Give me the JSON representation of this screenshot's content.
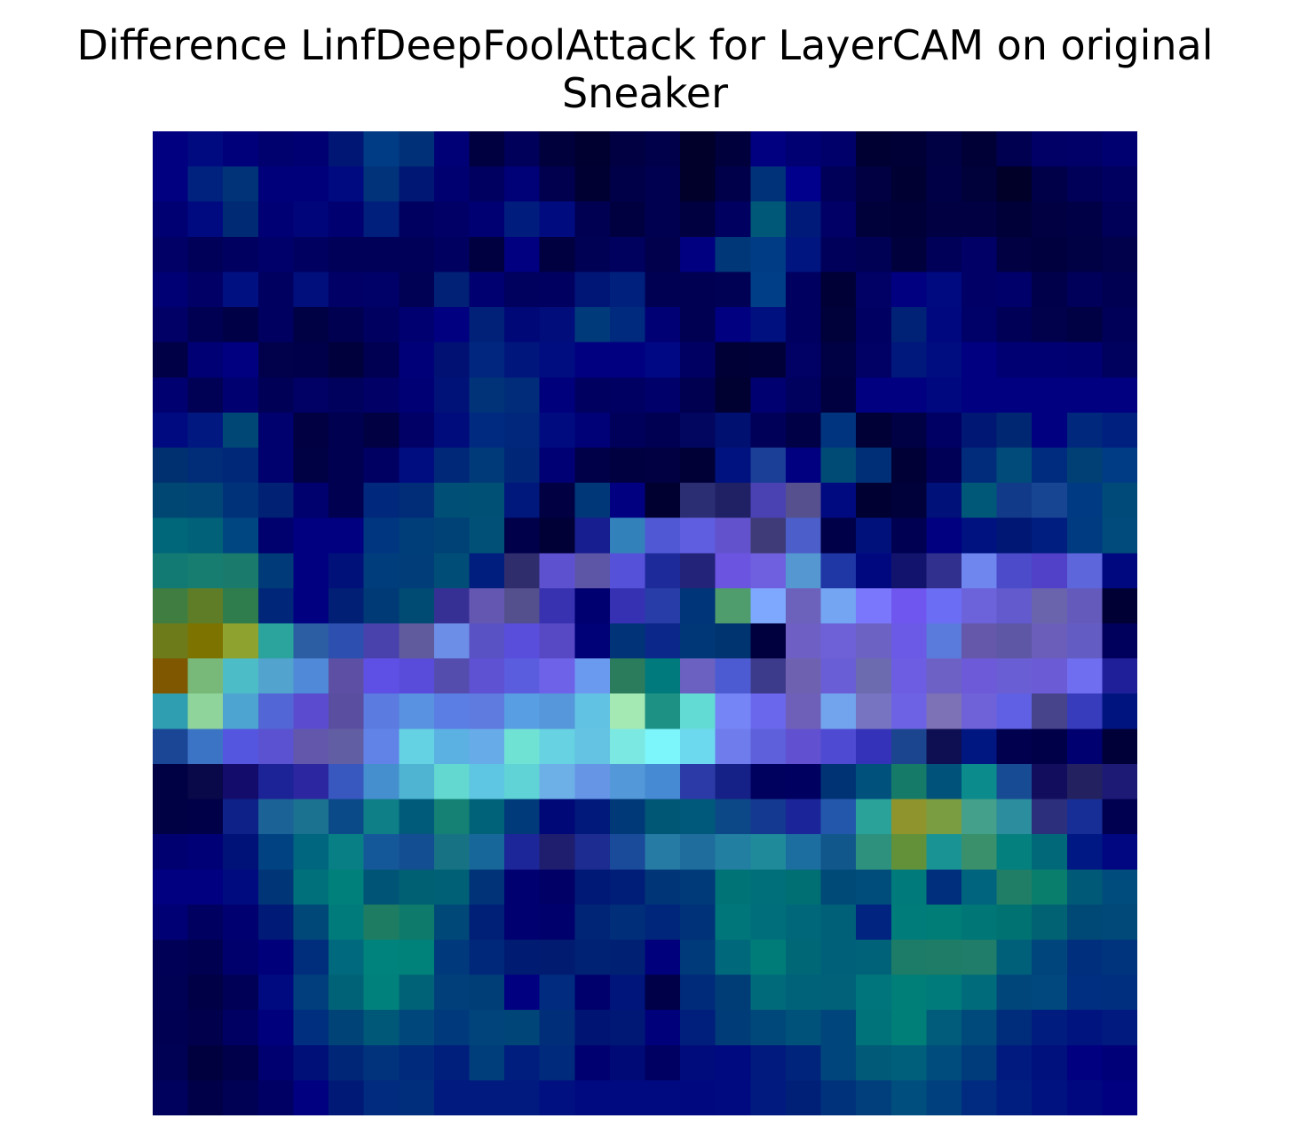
{
  "chart_data": {
    "type": "heatmap",
    "title_lines": [
      "Difference LinfDeepFoolAttack for LayerCAM on original",
      "Sneaker"
    ],
    "xlabel": "",
    "ylabel": "",
    "axes_visible": false,
    "grid": false,
    "rows": 28,
    "cols": 28,
    "cells": [
      [
        "#000080",
        "#000a80",
        "#00007a",
        "#00006e",
        "#000073",
        "#001675",
        "#003c85",
        "#003078",
        "#000076",
        "#000040",
        "#00005a",
        "#00003c",
        "#000030",
        "#000043",
        "#00004a",
        "#00002b",
        "#00003c",
        "#000080",
        "#000073",
        "#00006a",
        "#000033",
        "#000037",
        "#000044",
        "#000037",
        "#000050",
        "#000067",
        "#000068",
        "#000070"
      ],
      [
        "#000080",
        "#00227f",
        "#003378",
        "#00007a",
        "#00007a",
        "#000a80",
        "#003379",
        "#001773",
        "#000070",
        "#000060",
        "#000077",
        "#00004e",
        "#000033",
        "#000049",
        "#000050",
        "#00002b",
        "#00004a",
        "#00327a",
        "#00008d",
        "#000059",
        "#000042",
        "#000033",
        "#000047",
        "#00003a",
        "#000028",
        "#000048",
        "#000058",
        "#000060"
      ],
      [
        "#000073",
        "#000a80",
        "#002a73",
        "#000074",
        "#000579",
        "#000070",
        "#001e7c",
        "#000061",
        "#000067",
        "#000073",
        "#001c7c",
        "#000b80",
        "#000053",
        "#000041",
        "#000051",
        "#000040",
        "#000060",
        "#005878",
        "#001a79",
        "#000066",
        "#00003a",
        "#000038",
        "#000043",
        "#000043",
        "#000038",
        "#000042",
        "#000047",
        "#000058"
      ],
      [
        "#000066",
        "#000059",
        "#000061",
        "#00006a",
        "#000060",
        "#000059",
        "#000058",
        "#000058",
        "#000060",
        "#000040",
        "#000080",
        "#000041",
        "#000054",
        "#00005e",
        "#00004c",
        "#000080",
        "#003778",
        "#003c85",
        "#001580",
        "#00005b",
        "#000055",
        "#00003d",
        "#000059",
        "#000066",
        "#000043",
        "#00003e",
        "#000045",
        "#00004b"
      ],
      [
        "#000074",
        "#000066",
        "#001080",
        "#000061",
        "#000f7c",
        "#000067",
        "#000069",
        "#000055",
        "#002176",
        "#000070",
        "#00005e",
        "#000061",
        "#001677",
        "#00207d",
        "#000052",
        "#000052",
        "#000055",
        "#003e87",
        "#000061",
        "#000036",
        "#000065",
        "#000080",
        "#000a80",
        "#000066",
        "#00006a",
        "#00004a",
        "#00005b",
        "#000052"
      ],
      [
        "#000067",
        "#000052",
        "#000047",
        "#000061",
        "#000044",
        "#000051",
        "#000060",
        "#000070",
        "#000080",
        "#002177",
        "#000877",
        "#000d7a",
        "#003a7b",
        "#002a7d",
        "#000074",
        "#000053",
        "#000080",
        "#00107e",
        "#000060",
        "#00003a",
        "#000063",
        "#002276",
        "#000880",
        "#000069",
        "#000057",
        "#00004b",
        "#000044",
        "#000059"
      ],
      [
        "#000047",
        "#000075",
        "#000080",
        "#00004b",
        "#00004a",
        "#00003c",
        "#000052",
        "#000079",
        "#001173",
        "#00267f",
        "#00167c",
        "#000d80",
        "#000080",
        "#000080",
        "#000883",
        "#000063",
        "#000037",
        "#000039",
        "#000065",
        "#000044",
        "#000065",
        "#00177b",
        "#000d80",
        "#000080",
        "#000073",
        "#000073",
        "#000070",
        "#00005e"
      ],
      [
        "#000070",
        "#000055",
        "#000070",
        "#000057",
        "#000065",
        "#00005d",
        "#000067",
        "#000075",
        "#001278",
        "#003378",
        "#002c7a",
        "#00007c",
        "#000061",
        "#000063",
        "#00006a",
        "#000050",
        "#000031",
        "#000070",
        "#00005f",
        "#000040",
        "#000080",
        "#000080",
        "#000880",
        "#000080",
        "#000080",
        "#000080",
        "#000080",
        "#000080"
      ],
      [
        "#000a80",
        "#001880",
        "#004775",
        "#00006e",
        "#000042",
        "#000050",
        "#000042",
        "#000066",
        "#000b7c",
        "#002a80",
        "#00277b",
        "#000b80",
        "#000077",
        "#00005a",
        "#000052",
        "#02065e",
        "#001070",
        "#000059",
        "#000047",
        "#00347f",
        "#000036",
        "#000044",
        "#000064",
        "#001874",
        "#002872",
        "#000080",
        "#00287c",
        "#002080"
      ],
      [
        "#00306f",
        "#002c78",
        "#002878",
        "#00006e",
        "#000045",
        "#000051",
        "#000063",
        "#000d80",
        "#002878",
        "#003a78",
        "#002678",
        "#000074",
        "#000049",
        "#000041",
        "#000043",
        "#000037",
        "#001280",
        "#1b3f97",
        "#000080",
        "#004a76",
        "#002f78",
        "#000036",
        "#000056",
        "#002c7b",
        "#004b79",
        "#002c7f",
        "#004075",
        "#003c85"
      ],
      [
        "#004774",
        "#004575",
        "#00327a",
        "#002174",
        "#00006e",
        "#000051",
        "#00287c",
        "#002c78",
        "#004f76",
        "#005076",
        "#00177c",
        "#000043",
        "#003778",
        "#000080",
        "#000030",
        "#2c2e73",
        "#202064",
        "#4a42b3",
        "#56508f",
        "#000a80",
        "#000032",
        "#00003a",
        "#00117a",
        "#005878",
        "#113b88",
        "#184591",
        "#003a82",
        "#004a79"
      ],
      [
        "#006679",
        "#006178",
        "#004782",
        "#00006e",
        "#000080",
        "#000080",
        "#003680",
        "#003e7a",
        "#004176",
        "#005078",
        "#00004a",
        "#000037",
        "#171e8f",
        "#3381bb",
        "#5059d3",
        "#605ee0",
        "#6253cc",
        "#3e3b78",
        "#4b5ec9",
        "#000048",
        "#00117c",
        "#000052",
        "#000080",
        "#001180",
        "#001774",
        "#001d80",
        "#003a80",
        "#004b7b"
      ],
      [
        "#137a73",
        "#167d70",
        "#1a7b6d",
        "#003a79",
        "#000080",
        "#00117a",
        "#003d7c",
        "#003d79",
        "#004e77",
        "#001e7d",
        "#302d6d",
        "#5d51d0",
        "#5d56a6",
        "#5651d9",
        "#1d2a9a",
        "#23237a",
        "#6b54e0",
        "#6e60de",
        "#5597d1",
        "#1f36a5",
        "#000880",
        "#12136d",
        "#32308e",
        "#6e86ee",
        "#4c4ccb",
        "#5041c8",
        "#5d67db",
        "#000880"
      ],
      [
        "#3f7d40",
        "#5f7d27",
        "#2f7c4c",
        "#00267a",
        "#000080",
        "#001f75",
        "#003a76",
        "#004b73",
        "#373094",
        "#6457b1",
        "#54508e",
        "#3832b0",
        "#000070",
        "#3631b3",
        "#283da7",
        "#003579",
        "#4f9c6c",
        "#7ea7fe",
        "#6c62bc",
        "#73a5f2",
        "#7b77fd",
        "#6f56ef",
        "#6c6df5",
        "#6c62d9",
        "#625acd",
        "#6964ac",
        "#645abc",
        "#000035"
      ],
      [
        "#6e7b1b",
        "#7d7300",
        "#8ea22f",
        "#2aa49d",
        "#2b5ea2",
        "#2d4fb0",
        "#4942ad",
        "#605b9d",
        "#6c8ee6",
        "#5952c5",
        "#594edc",
        "#5749c4",
        "#000077",
        "#003377",
        "#0c278a",
        "#003877",
        "#003470",
        "#00003e",
        "#6e5fc4",
        "#6e61d7",
        "#6c62c4",
        "#6a5ae5",
        "#5a7adc",
        "#6558ab",
        "#5e57a5",
        "#6b5dba",
        "#635dc3",
        "#00005c"
      ],
      [
        "#7e5700",
        "#78b979",
        "#4cbcc6",
        "#52a4cf",
        "#4f89d7",
        "#5d50a4",
        "#5e4fe5",
        "#5a4cda",
        "#544dad",
        "#5e51d2",
        "#5b5ddf",
        "#6e63e8",
        "#6a9af0",
        "#2a7c5c",
        "#007a7c",
        "#6b61c0",
        "#4d5bd3",
        "#3c3a8a",
        "#6e62b0",
        "#6a5ed6",
        "#6d6bb0",
        "#6c5de3",
        "#6d61c5",
        "#6c5ad8",
        "#6a5ed5",
        "#6b5cd6",
        "#6f6ef0",
        "#201f9a"
      ],
      [
        "#2e9eb0",
        "#8ed49b",
        "#4da4d0",
        "#5266d6",
        "#5a4bcf",
        "#5a4ea0",
        "#5b7be0",
        "#5892e0",
        "#5b7ee4",
        "#5f7be0",
        "#589ee2",
        "#5597da",
        "#62c2e3",
        "#a4e8b4",
        "#1e9185",
        "#62dbd4",
        "#7685f6",
        "#6a67ec",
        "#6e60b8",
        "#71a4ec",
        "#7775c2",
        "#6d62e4",
        "#7d72b6",
        "#6f62d9",
        "#6060e4",
        "#47448c",
        "#363cbb",
        "#001480"
      ],
      [
        "#1b4595",
        "#3c74c5",
        "#5456e0",
        "#5b52d1",
        "#6357ab",
        "#615ea3",
        "#6183e8",
        "#64d2e3",
        "#5bb1e2",
        "#67abe8",
        "#70e2d4",
        "#66d2e2",
        "#64c3e2",
        "#7be9e1",
        "#7cf5fb",
        "#6dd9ef",
        "#6e7cec",
        "#5d60da",
        "#6151d0",
        "#4f4ad2",
        "#3432b8",
        "#1c4590",
        "#0e0f53",
        "#001680",
        "#00004e",
        "#000048",
        "#000071",
        "#000039"
      ],
      [
        "#000044",
        "#090849",
        "#130c6a",
        "#1b2396",
        "#2c27a0",
        "#3858c0",
        "#468fcf",
        "#4eb4d2",
        "#63d8d0",
        "#5ec6e2",
        "#5fd3d6",
        "#6db0e7",
        "#6795e6",
        "#5398d8",
        "#458ad2",
        "#2b3aa6",
        "#162188",
        "#00005f",
        "#000061",
        "#003374",
        "#00527c",
        "#167a69",
        "#00527a",
        "#0b8b8b",
        "#174c94",
        "#130d5d",
        "#23215f",
        "#1d1a76"
      ],
      [
        "#000044",
        "#000048",
        "#0d2189",
        "#1b6297",
        "#1a7290",
        "#0a4a88",
        "#0e7f86",
        "#005a7a",
        "#148174",
        "#006279",
        "#003a7a",
        "#000777",
        "#00197a",
        "#003978",
        "#005675",
        "#00587a",
        "#0c4888",
        "#143990",
        "#1b2599",
        "#2357ab",
        "#2aa29a",
        "#8f942d",
        "#7b9d42",
        "#449f8b",
        "#2b8d9d",
        "#2b2f7c",
        "#172e96",
        "#000050"
      ],
      [
        "#000071",
        "#000076",
        "#001278",
        "#004282",
        "#00657f",
        "#087f84",
        "#15589a",
        "#134e93",
        "#177383",
        "#18679a",
        "#1c2698",
        "#1e1d6e",
        "#1d2c91",
        "#1a4a9a",
        "#257ba4",
        "#1e6d9d",
        "#227fa1",
        "#1f8a99",
        "#1c6ea0",
        "#12578c",
        "#2d917d",
        "#62913a",
        "#1a9395",
        "#39906b",
        "#04807f",
        "#006878",
        "#001883",
        "#000780"
      ],
      [
        "#000080",
        "#000080",
        "#000b80",
        "#003678",
        "#00717a",
        "#00807b",
        "#005577",
        "#006073",
        "#006176",
        "#003378",
        "#000071",
        "#000067",
        "#001876",
        "#001e77",
        "#003677",
        "#003a79",
        "#007377",
        "#006f79",
        "#006f74",
        "#004a77",
        "#004d7c",
        "#007a7b",
        "#00307d",
        "#00647e",
        "#1f7e65",
        "#0a7e6d",
        "#005977",
        "#004c7d"
      ],
      [
        "#000074",
        "#000060",
        "#000071",
        "#001a78",
        "#004878",
        "#007b7b",
        "#1e7c62",
        "#0e7a6c",
        "#004877",
        "#002077",
        "#000071",
        "#00006d",
        "#002476",
        "#002e78",
        "#00267c",
        "#003279",
        "#00767a",
        "#006f7b",
        "#00677a",
        "#006078",
        "#002480",
        "#007c7a",
        "#007d77",
        "#007676",
        "#007272",
        "#006272",
        "#004976",
        "#004978"
      ],
      [
        "#000057",
        "#000051",
        "#00006d",
        "#00007a",
        "#002d7c",
        "#00697d",
        "#00837c",
        "#00817a",
        "#003a7c",
        "#00287a",
        "#001b72",
        "#001b70",
        "#002274",
        "#002173",
        "#00007d",
        "#003a7a",
        "#00687b",
        "#007c78",
        "#006777",
        "#00607a",
        "#006279",
        "#1c7c67",
        "#1f7c66",
        "#1f7d69",
        "#005f79",
        "#00457c",
        "#002f7e",
        "#00347c"
      ],
      [
        "#000054",
        "#000047",
        "#000056",
        "#000a80",
        "#003e7d",
        "#006277",
        "#00817b",
        "#006277",
        "#003f7a",
        "#003e78",
        "#000080",
        "#002b7f",
        "#00006c",
        "#00157b",
        "#000049",
        "#002b7a",
        "#003d77",
        "#006a7a",
        "#006279",
        "#006179",
        "#00757b",
        "#007e78",
        "#007b7b",
        "#006b7a",
        "#00467b",
        "#00487d",
        "#002e80",
        "#002f80"
      ],
      [
        "#000053",
        "#00004c",
        "#000062",
        "#00007c",
        "#002f7f",
        "#004377",
        "#005879",
        "#00487b",
        "#003a7d",
        "#00447b",
        "#004578",
        "#002e78",
        "#001474",
        "#001875",
        "#00007a",
        "#001e7c",
        "#003c78",
        "#00477a",
        "#00527a",
        "#00457b",
        "#007279",
        "#007f78",
        "#005c7a",
        "#00497b",
        "#002c7c",
        "#001c7f",
        "#001480",
        "#001a80"
      ],
      [
        "#000054",
        "#00003f",
        "#00004a",
        "#000070",
        "#001079",
        "#002677",
        "#00337b",
        "#002a7b",
        "#001e7c",
        "#003d7b",
        "#001e7d",
        "#002a7b",
        "#000071",
        "#000a77",
        "#000062",
        "#000b7c",
        "#000a80",
        "#001a7d",
        "#00247b",
        "#00457b",
        "#005a78",
        "#00607b",
        "#004c7d",
        "#003c7c",
        "#001a80",
        "#00107d",
        "#000080",
        "#000079"
      ],
      [
        "#00005d",
        "#000049",
        "#000054",
        "#000064",
        "#000080",
        "#001976",
        "#002b7f",
        "#002d7c",
        "#001a80",
        "#001a80",
        "#001a80",
        "#001080",
        "#000a80",
        "#000a80",
        "#000a80",
        "#000880",
        "#000a80",
        "#001a80",
        "#002078",
        "#00327c",
        "#003e7c",
        "#004e7e",
        "#00407e",
        "#002b80",
        "#001e80",
        "#001180",
        "#000880",
        "#000080"
      ]
    ]
  }
}
